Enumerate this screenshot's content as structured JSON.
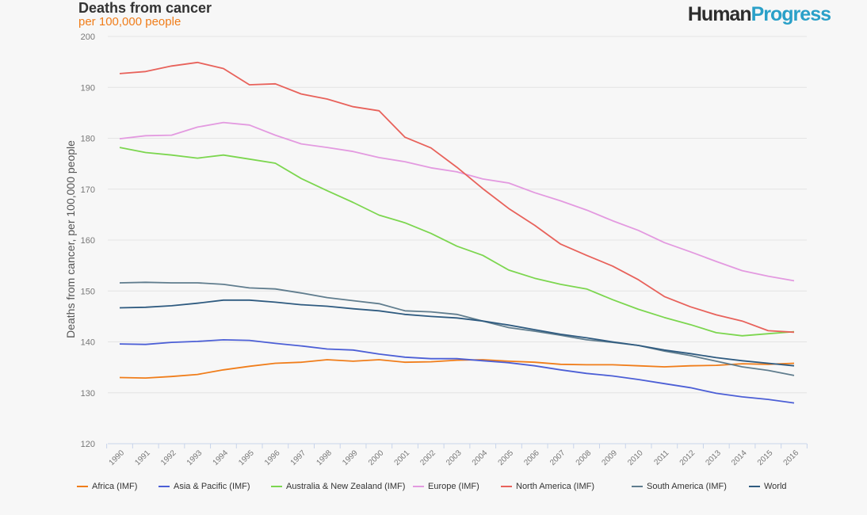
{
  "header": {
    "title": "Deaths from cancer",
    "subtitle": "per 100,000 people",
    "brand_part1": "Human",
    "brand_part2": "Progress"
  },
  "colors": {
    "africa": "#f07d1a",
    "asia": "#4c5fd6",
    "australia": "#7cd64f",
    "europe": "#e39ae0",
    "north_america": "#e8625b",
    "south_america": "#607d8e",
    "world": "#2f5b80"
  },
  "chart_data": {
    "type": "line",
    "title": "Deaths from cancer",
    "subtitle": "per 100,000 people",
    "xlabel": "",
    "ylabel": "Deaths from cancer, per 100,000 people",
    "ylim": [
      120,
      200
    ],
    "yticks": [
      120,
      130,
      140,
      150,
      160,
      170,
      180,
      190,
      200
    ],
    "grid": true,
    "legend_position": "bottom",
    "x": [
      "1990",
      "1991",
      "1992",
      "1993",
      "1994",
      "1995",
      "1996",
      "1997",
      "1998",
      "1999",
      "2000",
      "2001",
      "2002",
      "2003",
      "2004",
      "2005",
      "2006",
      "2007",
      "2008",
      "2009",
      "2010",
      "2011",
      "2012",
      "2013",
      "2014",
      "2015",
      "2016"
    ],
    "series": [
      {
        "key": "africa",
        "name": "Africa (IMF)",
        "values": [
          133.0,
          132.9,
          133.2,
          133.6,
          134.5,
          135.2,
          135.8,
          136.0,
          136.5,
          136.2,
          136.5,
          136.0,
          136.1,
          136.4,
          136.5,
          136.2,
          136.0,
          135.6,
          135.5,
          135.5,
          135.3,
          135.1,
          135.3,
          135.4,
          135.7,
          135.6,
          135.8
        ]
      },
      {
        "key": "asia",
        "name": "Asia & Pacific (IMF)",
        "values": [
          139.6,
          139.5,
          139.9,
          140.1,
          140.4,
          140.3,
          139.7,
          139.2,
          138.6,
          138.4,
          137.6,
          137.0,
          136.7,
          136.7,
          136.3,
          135.9,
          135.3,
          134.5,
          133.8,
          133.3,
          132.6,
          131.8,
          131.0,
          129.9,
          129.2,
          128.7,
          128.0
        ]
      },
      {
        "key": "australia",
        "name": "Australia & New Zealand (IMF)",
        "values": [
          178.2,
          177.2,
          176.7,
          176.1,
          176.7,
          175.9,
          175.1,
          172.1,
          169.7,
          167.4,
          164.9,
          163.4,
          161.3,
          158.8,
          157.0,
          154.1,
          152.5,
          151.3,
          150.4,
          148.3,
          146.4,
          144.8,
          143.4,
          141.8,
          141.2,
          141.6,
          142.0
        ]
      },
      {
        "key": "europe",
        "name": "Europe (IMF)",
        "values": [
          179.9,
          180.5,
          180.6,
          182.2,
          183.1,
          182.6,
          180.6,
          178.9,
          178.2,
          177.4,
          176.2,
          175.4,
          174.2,
          173.4,
          172.0,
          171.2,
          169.3,
          167.7,
          165.9,
          163.8,
          161.9,
          159.5,
          157.7,
          155.8,
          154.0,
          152.9,
          152.0
        ]
      },
      {
        "key": "north_america",
        "name": "North America (IMF)",
        "values": [
          192.7,
          193.1,
          194.2,
          194.9,
          193.7,
          190.5,
          190.7,
          188.7,
          187.7,
          186.2,
          185.4,
          180.2,
          178.1,
          174.3,
          170.1,
          166.2,
          162.9,
          159.2,
          157.0,
          154.9,
          152.2,
          148.9,
          146.9,
          145.3,
          144.1,
          142.2,
          141.9
        ]
      },
      {
        "key": "south_america",
        "name": "South America (IMF)",
        "values": [
          151.6,
          151.7,
          151.6,
          151.6,
          151.3,
          150.6,
          150.4,
          149.6,
          148.7,
          148.1,
          147.5,
          146.1,
          145.9,
          145.4,
          144.1,
          142.8,
          142.1,
          141.3,
          140.4,
          139.9,
          139.3,
          138.2,
          137.3,
          136.2,
          135.1,
          134.4,
          133.4
        ]
      },
      {
        "key": "world",
        "name": "World",
        "values": [
          146.7,
          146.8,
          147.1,
          147.6,
          148.2,
          148.2,
          147.8,
          147.3,
          147.0,
          146.5,
          146.1,
          145.4,
          145.0,
          144.7,
          144.1,
          143.3,
          142.4,
          141.5,
          140.8,
          140.0,
          139.3,
          138.4,
          137.7,
          136.9,
          136.3,
          135.8,
          135.3
        ]
      }
    ]
  }
}
